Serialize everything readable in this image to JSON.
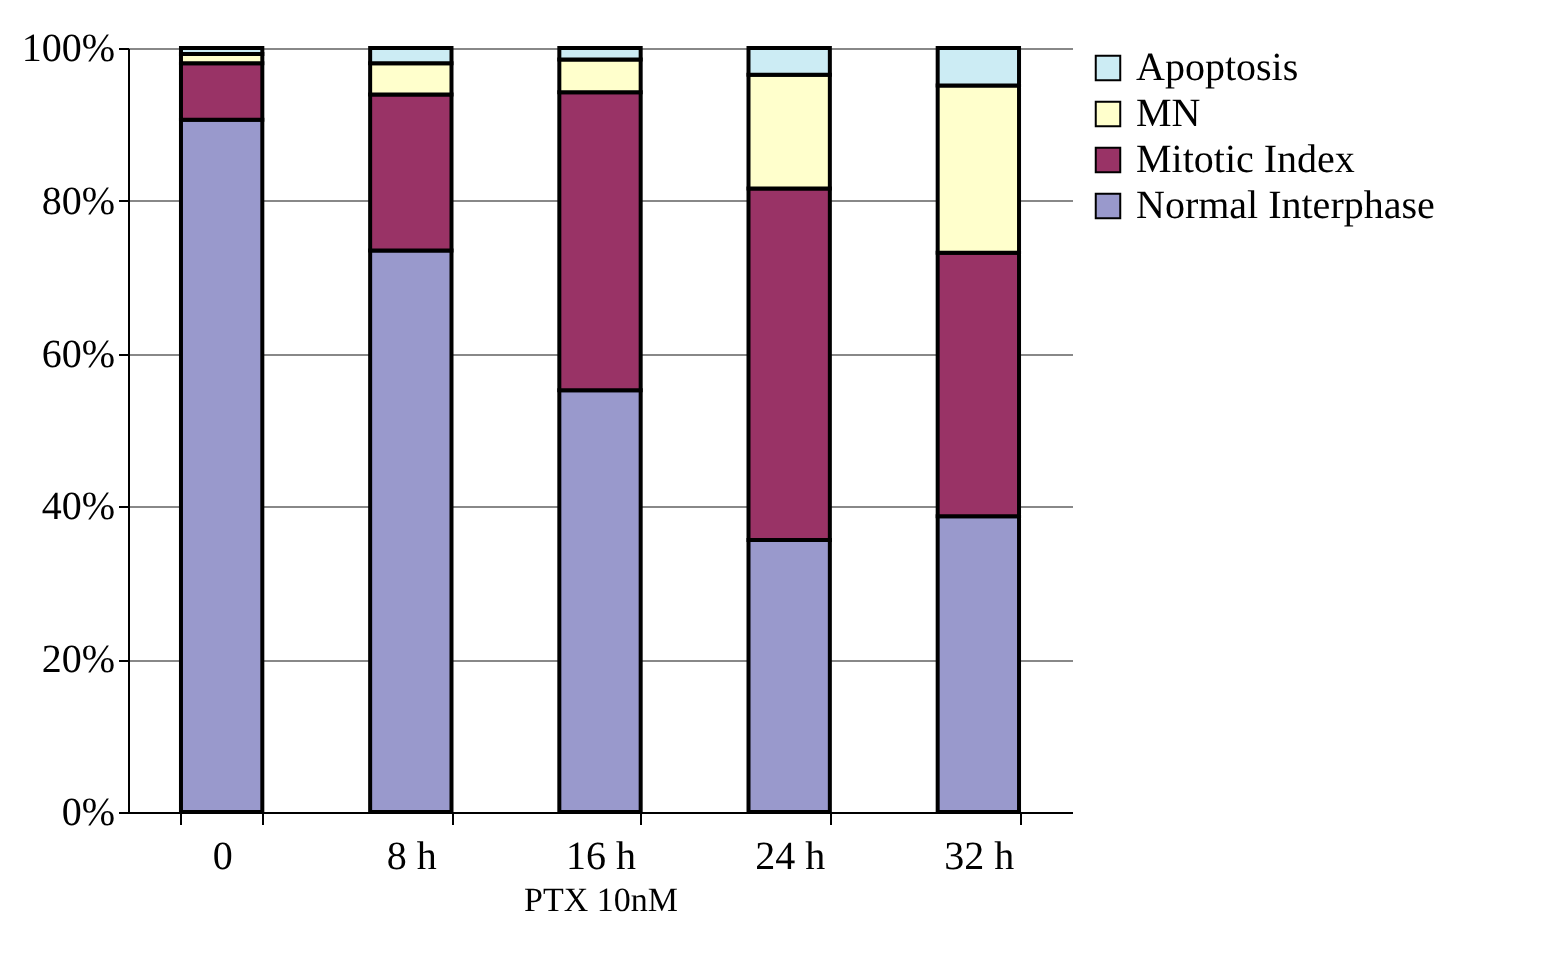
{
  "chart_data": {
    "type": "bar",
    "stacked": true,
    "xlabel": "PTX 10nM",
    "categories": [
      "0",
      "8 h",
      "16 h",
      "24 h",
      "32 h"
    ],
    "series": [
      {
        "name": "Normal Interphase",
        "color": "#9999cc",
        "values": [
          90.6,
          73.5,
          55.2,
          35.6,
          38.7
        ]
      },
      {
        "name": "Mitotic Index",
        "color": "#993366",
        "values": [
          7.4,
          20.4,
          39.0,
          46.0,
          34.5
        ]
      },
      {
        "name": "MN",
        "color": "#ffffcc",
        "values": [
          1.2,
          4.1,
          4.3,
          14.9,
          21.9
        ]
      },
      {
        "name": "Apoptosis",
        "color": "#ccecf4",
        "values": [
          0.8,
          2.0,
          1.5,
          3.5,
          4.9
        ]
      }
    ],
    "ylim": [
      0,
      100
    ],
    "yticks": [
      {
        "value": 0,
        "label": "0%"
      },
      {
        "value": 20,
        "label": "20%"
      },
      {
        "value": 40,
        "label": "40%"
      },
      {
        "value": 60,
        "label": "60%"
      },
      {
        "value": 80,
        "label": "80%"
      },
      {
        "value": 100,
        "label": "100%"
      }
    ],
    "grid": "y",
    "legend": "right"
  }
}
